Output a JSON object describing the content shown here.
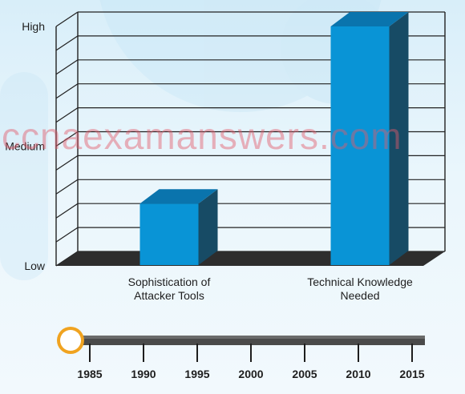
{
  "watermark": "ccnaexamanswers.com",
  "chart_data": {
    "type": "bar",
    "categories": [
      "Sophistication of\nAttacker Tools",
      "Technical Knowledge\nNeeded"
    ],
    "values": [
      26,
      100
    ],
    "yticks": [
      {
        "value": 0,
        "label": "Low"
      },
      {
        "value": 50,
        "label": "Medium"
      },
      {
        "value": 100,
        "label": "High"
      }
    ],
    "ylim": [
      0,
      100
    ],
    "grid": true,
    "colors": {
      "bar_front": "#0994d6",
      "bar_top": "#0a74ad",
      "bar_side": "#174b65",
      "floor": "#2d2d2d",
      "grid": "#222222"
    }
  },
  "timeline": {
    "years": [
      "1985",
      "1990",
      "1995",
      "2000",
      "2005",
      "2010",
      "2015"
    ],
    "knob_position": 0,
    "colors": {
      "track": "#4a4a4a",
      "knob_ring": "#f0a320",
      "knob_fill": "#ffffff"
    }
  }
}
